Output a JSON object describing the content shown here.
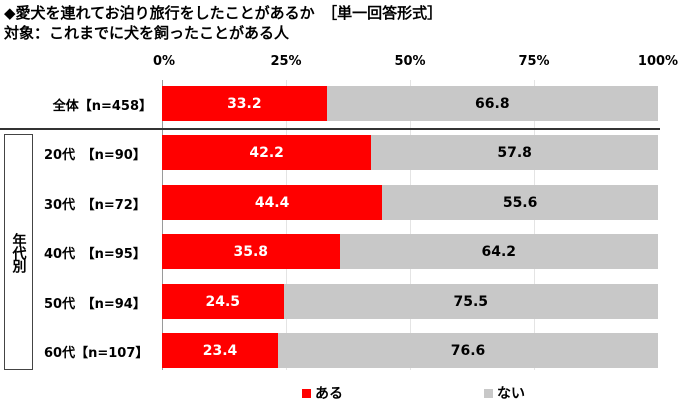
{
  "header": {
    "title": "◆愛犬を連れてお泊り旅行をしたことがあるか　［単一回答形式］",
    "subtitle": "対象：これまでに犬を飼ったことがある人"
  },
  "axis": {
    "ticks": [
      "0%",
      "25%",
      "50%",
      "75%",
      "100%"
    ]
  },
  "group_label": "年代別",
  "legend": {
    "yes": {
      "label": "ある",
      "color": "#ff0000"
    },
    "no": {
      "label": "ない",
      "color": "#c8c8c8"
    }
  },
  "rows": [
    {
      "label": "全体【n=458】",
      "yes": "33.2",
      "no": "66.8"
    },
    {
      "label": "20代　【n=90】",
      "yes": "42.2",
      "no": "57.8"
    },
    {
      "label": "30代　【n=72】",
      "yes": "44.4",
      "no": "55.6"
    },
    {
      "label": "40代　【n=95】",
      "yes": "35.8",
      "no": "64.2"
    },
    {
      "label": "50代　【n=94】",
      "yes": "24.5",
      "no": "75.5"
    },
    {
      "label": "60代【n=107】",
      "yes": "23.4",
      "no": "76.6"
    }
  ],
  "chart_data": {
    "type": "bar",
    "orientation": "horizontal",
    "stacked": true,
    "percent_stacked": true,
    "title": "◆愛犬を連れてお泊り旅行をしたことがあるか　［単一回答形式］",
    "subtitle": "対象：これまでに犬を飼ったことがある人",
    "categories": [
      "全体【n=458】",
      "20代　【n=90】",
      "30代　【n=72】",
      "40代　【n=95】",
      "50代　【n=94】",
      "60代【n=107】"
    ],
    "category_group": {
      "label": "年代別",
      "members": [
        "20代　【n=90】",
        "30代　【n=72】",
        "40代　【n=95】",
        "50代　【n=94】",
        "60代【n=107】"
      ]
    },
    "series": [
      {
        "name": "ある",
        "color": "#ff0000",
        "values": [
          33.2,
          42.2,
          44.4,
          35.8,
          24.5,
          23.4
        ]
      },
      {
        "name": "ない",
        "color": "#c8c8c8",
        "values": [
          66.8,
          57.8,
          55.6,
          64.2,
          75.5,
          76.6
        ]
      }
    ],
    "xlabel": "",
    "ylabel": "",
    "xlim": [
      0,
      100
    ],
    "x_ticks": [
      "0%",
      "25%",
      "50%",
      "75%",
      "100%"
    ],
    "grid": true,
    "legend_position": "bottom",
    "data_labels": true
  }
}
